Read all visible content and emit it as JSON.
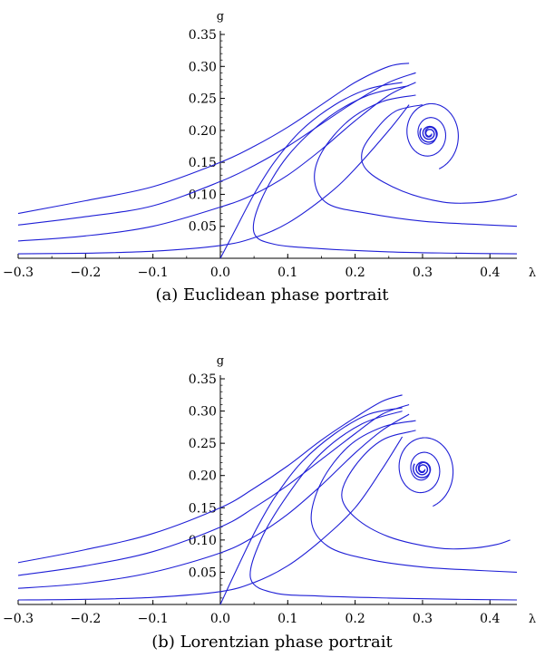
{
  "colors": {
    "curve": "#1f1fd6",
    "axis": "#000000",
    "background": "#ffffff"
  },
  "chart_data": [
    {
      "type": "line",
      "caption": "(a) Euclidean phase portrait",
      "xlabel": "λ",
      "ylabel": "g",
      "xlim": [
        -0.3,
        0.44
      ],
      "ylim": [
        0.0,
        0.35
      ],
      "xticks": [
        "−0.3",
        "−0.2",
        "−0.1",
        "0.0",
        "0.1",
        "0.2",
        "0.3",
        "0.4"
      ],
      "yticks": [
        "0.05",
        "0.10",
        "0.15",
        "0.20",
        "0.25",
        "0.30",
        "0.35"
      ],
      "grid": false,
      "spiral_center": [
        0.31,
        0.195
      ],
      "series": [
        {
          "values": [
            [
              -0.3,
              0.007
            ],
            [
              -0.2,
              0.008
            ],
            [
              -0.1,
              0.011
            ],
            [
              0.0,
              0.02
            ],
            [
              0.05,
              0.032
            ],
            [
              0.1,
              0.055
            ],
            [
              0.16,
              0.1
            ],
            [
              0.2,
              0.14
            ],
            [
              0.25,
              0.2
            ],
            [
              0.28,
              0.24
            ]
          ]
        },
        {
          "values": [
            [
              -0.3,
              0.027
            ],
            [
              -0.2,
              0.035
            ],
            [
              -0.1,
              0.05
            ],
            [
              0.0,
              0.08
            ],
            [
              0.05,
              0.1
            ],
            [
              0.1,
              0.13
            ],
            [
              0.15,
              0.17
            ],
            [
              0.2,
              0.215
            ],
            [
              0.25,
              0.255
            ],
            [
              0.29,
              0.275
            ]
          ]
        },
        {
          "values": [
            [
              -0.3,
              0.052
            ],
            [
              -0.2,
              0.065
            ],
            [
              -0.1,
              0.082
            ],
            [
              0.0,
              0.12
            ],
            [
              0.05,
              0.145
            ],
            [
              0.1,
              0.175
            ],
            [
              0.15,
              0.21
            ],
            [
              0.2,
              0.245
            ],
            [
              0.25,
              0.275
            ],
            [
              0.29,
              0.29
            ]
          ]
        },
        {
          "values": [
            [
              -0.3,
              0.07
            ],
            [
              -0.2,
              0.09
            ],
            [
              -0.1,
              0.112
            ],
            [
              0.0,
              0.15
            ],
            [
              0.05,
              0.175
            ],
            [
              0.1,
              0.205
            ],
            [
              0.15,
              0.24
            ],
            [
              0.2,
              0.275
            ],
            [
              0.25,
              0.3
            ],
            [
              0.28,
              0.305
            ]
          ]
        },
        {
          "values": [
            [
              0.0,
              0.0
            ],
            [
              0.02,
              0.04
            ],
            [
              0.05,
              0.1
            ],
            [
              0.08,
              0.15
            ],
            [
              0.12,
              0.2
            ],
            [
              0.17,
              0.24
            ],
            [
              0.22,
              0.265
            ],
            [
              0.27,
              0.275
            ]
          ]
        },
        {
          "values": [
            [
              0.44,
              0.007
            ],
            [
              0.35,
              0.008
            ],
            [
              0.25,
              0.01
            ],
            [
              0.15,
              0.015
            ],
            [
              0.08,
              0.022
            ],
            [
              0.05,
              0.04
            ],
            [
              0.06,
              0.09
            ],
            [
              0.1,
              0.16
            ],
            [
              0.16,
              0.22
            ],
            [
              0.22,
              0.255
            ],
            [
              0.28,
              0.27
            ]
          ]
        },
        {
          "values": [
            [
              0.44,
              0.05
            ],
            [
              0.38,
              0.053
            ],
            [
              0.3,
              0.058
            ],
            [
              0.22,
              0.07
            ],
            [
              0.16,
              0.085
            ],
            [
              0.14,
              0.12
            ],
            [
              0.15,
              0.165
            ],
            [
              0.19,
              0.215
            ],
            [
              0.24,
              0.245
            ],
            [
              0.29,
              0.255
            ]
          ]
        },
        {
          "values": [
            [
              0.44,
              0.1
            ],
            [
              0.42,
              0.093
            ],
            [
              0.38,
              0.087
            ],
            [
              0.33,
              0.088
            ],
            [
              0.27,
              0.105
            ],
            [
              0.22,
              0.135
            ],
            [
              0.21,
              0.165
            ],
            [
              0.23,
              0.2
            ],
            [
              0.26,
              0.23
            ],
            [
              0.3,
              0.24
            ]
          ]
        }
      ]
    },
    {
      "type": "line",
      "caption": "(b) Lorentzian phase portrait",
      "xlabel": "λ",
      "ylabel": "g",
      "xlim": [
        -0.3,
        0.44
      ],
      "ylim": [
        0.0,
        0.35
      ],
      "xticks": [
        "−0.3",
        "−0.2",
        "−0.1",
        "0.0",
        "0.1",
        "0.2",
        "0.3",
        "0.4"
      ],
      "yticks": [
        "0.05",
        "0.10",
        "0.15",
        "0.20",
        "0.25",
        "0.30",
        "0.35"
      ],
      "grid": false,
      "spiral_center": [
        0.3,
        0.21
      ],
      "series": [
        {
          "values": [
            [
              -0.3,
              0.007
            ],
            [
              -0.2,
              0.008
            ],
            [
              -0.1,
              0.011
            ],
            [
              0.0,
              0.02
            ],
            [
              0.05,
              0.034
            ],
            [
              0.1,
              0.06
            ],
            [
              0.15,
              0.1
            ],
            [
              0.2,
              0.15
            ],
            [
              0.24,
              0.21
            ],
            [
              0.27,
              0.26
            ]
          ]
        },
        {
          "values": [
            [
              -0.3,
              0.025
            ],
            [
              -0.2,
              0.033
            ],
            [
              -0.1,
              0.05
            ],
            [
              0.0,
              0.08
            ],
            [
              0.05,
              0.105
            ],
            [
              0.1,
              0.14
            ],
            [
              0.15,
              0.185
            ],
            [
              0.2,
              0.235
            ],
            [
              0.24,
              0.27
            ],
            [
              0.28,
              0.295
            ]
          ]
        },
        {
          "values": [
            [
              -0.3,
              0.045
            ],
            [
              -0.2,
              0.06
            ],
            [
              -0.1,
              0.082
            ],
            [
              0.0,
              0.12
            ],
            [
              0.05,
              0.15
            ],
            [
              0.1,
              0.185
            ],
            [
              0.15,
              0.225
            ],
            [
              0.2,
              0.265
            ],
            [
              0.24,
              0.295
            ],
            [
              0.28,
              0.31
            ]
          ]
        },
        {
          "values": [
            [
              -0.3,
              0.065
            ],
            [
              -0.2,
              0.085
            ],
            [
              -0.1,
              0.11
            ],
            [
              0.0,
              0.15
            ],
            [
              0.05,
              0.18
            ],
            [
              0.1,
              0.215
            ],
            [
              0.15,
              0.255
            ],
            [
              0.2,
              0.29
            ],
            [
              0.24,
              0.315
            ],
            [
              0.27,
              0.325
            ]
          ]
        },
        {
          "values": [
            [
              0.0,
              0.0
            ],
            [
              0.02,
              0.045
            ],
            [
              0.05,
              0.11
            ],
            [
              0.08,
              0.165
            ],
            [
              0.12,
              0.22
            ],
            [
              0.17,
              0.265
            ],
            [
              0.22,
              0.295
            ],
            [
              0.27,
              0.305
            ]
          ]
        },
        {
          "values": [
            [
              0.44,
              0.007
            ],
            [
              0.35,
              0.008
            ],
            [
              0.25,
              0.01
            ],
            [
              0.15,
              0.013
            ],
            [
              0.08,
              0.018
            ],
            [
              0.045,
              0.04
            ],
            [
              0.06,
              0.1
            ],
            [
              0.1,
              0.17
            ],
            [
              0.15,
              0.235
            ],
            [
              0.21,
              0.28
            ],
            [
              0.27,
              0.3
            ]
          ]
        },
        {
          "values": [
            [
              0.44,
              0.05
            ],
            [
              0.38,
              0.053
            ],
            [
              0.3,
              0.058
            ],
            [
              0.22,
              0.07
            ],
            [
              0.16,
              0.09
            ],
            [
              0.135,
              0.13
            ],
            [
              0.15,
              0.19
            ],
            [
              0.19,
              0.245
            ],
            [
              0.24,
              0.275
            ],
            [
              0.29,
              0.285
            ]
          ]
        },
        {
          "values": [
            [
              0.43,
              0.1
            ],
            [
              0.41,
              0.093
            ],
            [
              0.37,
              0.087
            ],
            [
              0.32,
              0.088
            ],
            [
              0.25,
              0.105
            ],
            [
              0.2,
              0.135
            ],
            [
              0.18,
              0.17
            ],
            [
              0.2,
              0.215
            ],
            [
              0.24,
              0.255
            ],
            [
              0.29,
              0.27
            ]
          ]
        }
      ]
    }
  ]
}
